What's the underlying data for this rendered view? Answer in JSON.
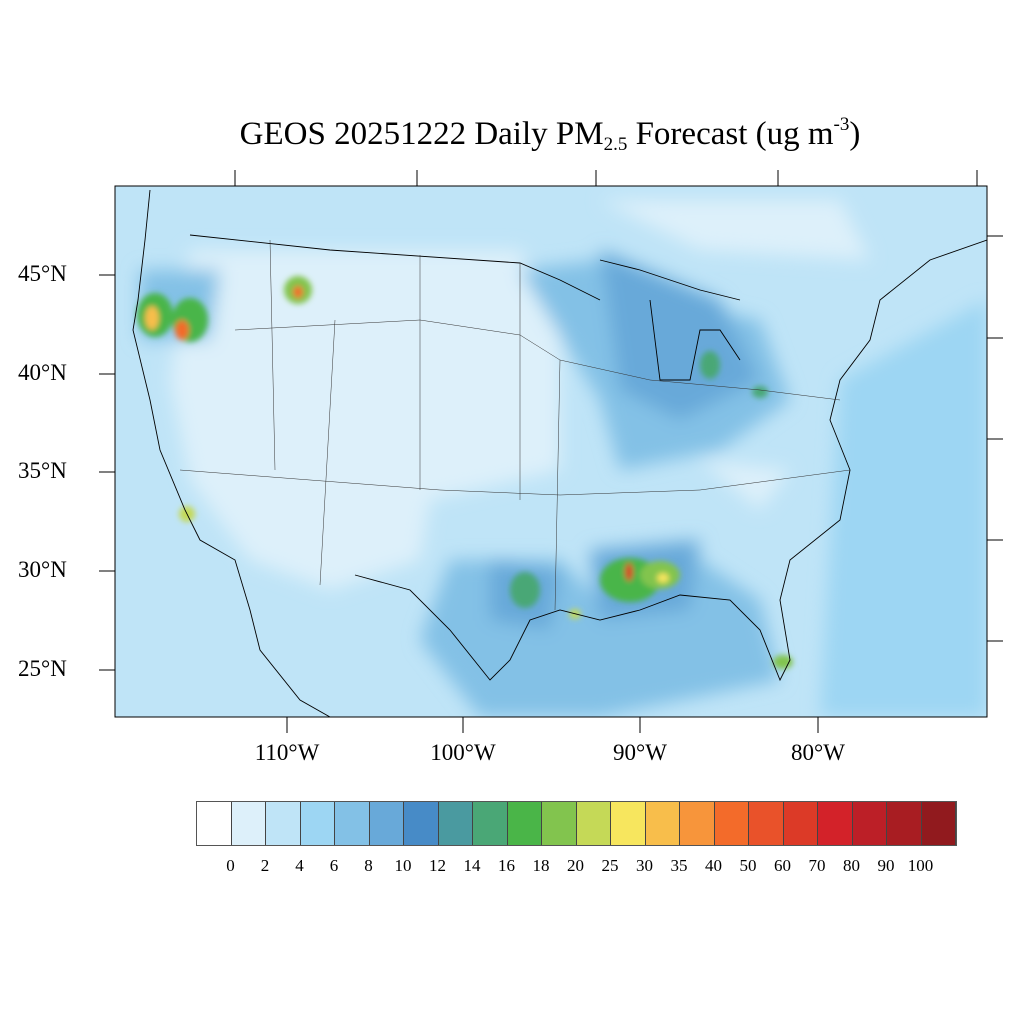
{
  "title": {
    "main": "GEOS 20251222 Daily PM",
    "subscript": "2.5",
    "tail": " Forecast (ug m",
    "superscript": "-3",
    "close": ")"
  },
  "map": {
    "lat_labels": [
      "45°N",
      "40°N",
      "35°N",
      "30°N",
      "25°N"
    ],
    "lon_labels": [
      "110°W",
      "100°W",
      "90°W",
      "80°W"
    ],
    "variable": "PM2.5",
    "units": "ug m-3"
  },
  "colorbar": {
    "labels": [
      "0",
      "2",
      "4",
      "6",
      "8",
      "10",
      "12",
      "14",
      "16",
      "18",
      "20",
      "25",
      "30",
      "35",
      "40",
      "50",
      "60",
      "70",
      "80",
      "90",
      "100"
    ],
    "colors": [
      "#ffffff",
      "#ddf0fa",
      "#bfe4f7",
      "#9dd6f3",
      "#83c1e6",
      "#68a9d9",
      "#478bc7",
      "#4a9aa0",
      "#4aa776",
      "#4ab548",
      "#82c44e",
      "#c5d957",
      "#f7e65e",
      "#f8be4b",
      "#f7953b",
      "#f36b2a",
      "#e9522a",
      "#dc3a27",
      "#d32229",
      "#bc1f27",
      "#a81d22",
      "#911a1e"
    ]
  }
}
